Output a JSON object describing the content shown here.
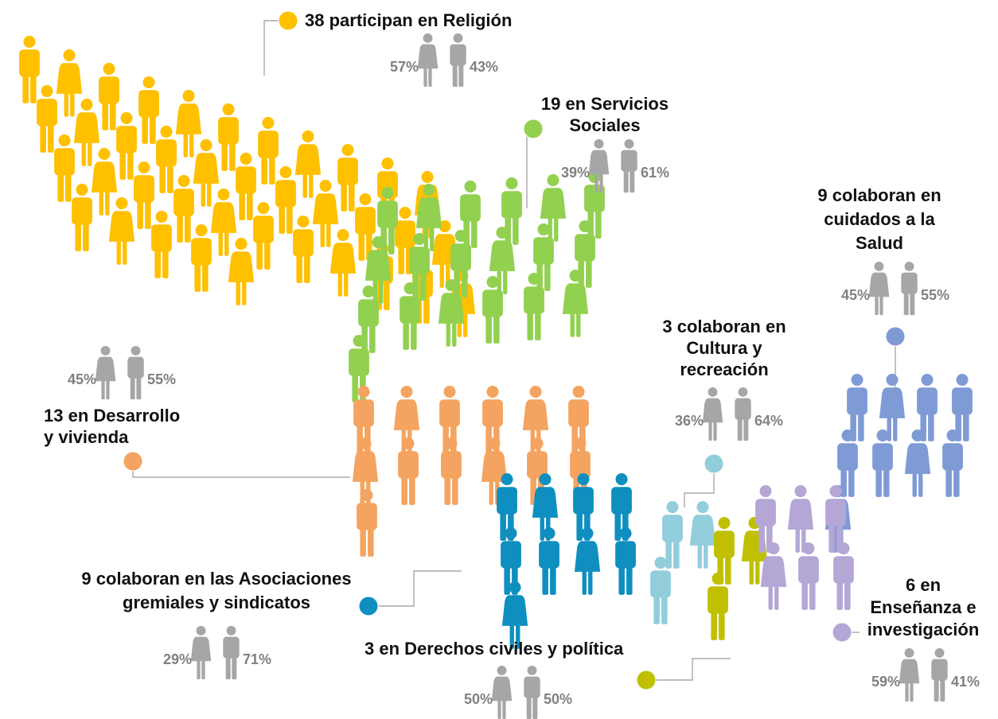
{
  "groups": [
    {
      "count": 38,
      "lines": [
        "participan en Religión"
      ],
      "female": "57%",
      "male": "43%",
      "color": "#FFC000"
    },
    {
      "count": 19,
      "lines": [
        "en Servicios",
        "Sociales"
      ],
      "female": "39%",
      "male": "61%",
      "color": "#92D050"
    },
    {
      "count": 9,
      "lines": [
        "colaboran en",
        "cuidados a la",
        "Salud"
      ],
      "female": "45%",
      "male": "55%",
      "color": "#7F9BD6"
    },
    {
      "count": 3,
      "lines": [
        "colaboran en",
        "Cultura y",
        "recreación"
      ],
      "female": "36%",
      "male": "64%",
      "color": "#92CDDC"
    },
    {
      "count": 13,
      "lines": [
        "en Desarrollo",
        "y vivienda"
      ],
      "female": "45%",
      "male": "55%",
      "color": "#F4A460"
    },
    {
      "count": 9,
      "lines": [
        "colaboran en las Asociaciones",
        "gremiales y sindicatos"
      ],
      "female": "29%",
      "male": "71%",
      "color": "#0E8FC0"
    },
    {
      "count": 3,
      "lines": [
        "en Derechos civiles y política"
      ],
      "female": "50%",
      "male": "50%",
      "color": "#C0C000"
    },
    {
      "count": 6,
      "lines": [
        "en",
        "Enseñanza e",
        "investigación"
      ],
      "female": "59%",
      "male": "41%",
      "color": "#B4A7D6"
    }
  ]
}
